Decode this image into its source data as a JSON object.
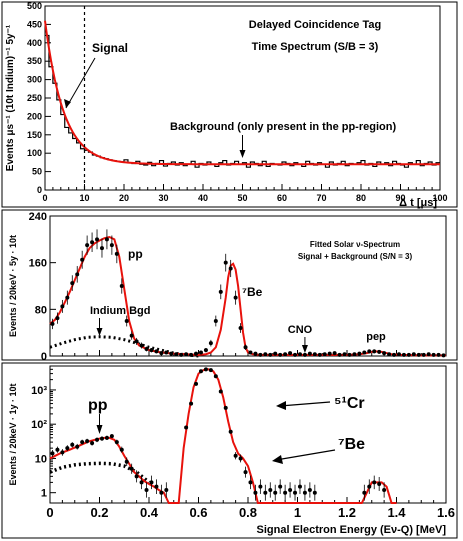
{
  "colors": {
    "fit": "#e8120c",
    "data": "#000000",
    "bgd": "#000000"
  },
  "chart_data": [
    {
      "type": "line",
      "panel": "time-spectrum",
      "annotations": [
        "Delayed Coincidence Tag",
        "Time Spectrum (S/B = 3)",
        "Signal",
        "Background (only present in the pp-region)"
      ],
      "xlabel": "Δ t [μs]",
      "ylabel": "Events μs⁻¹ (10t Indium)⁻¹ 5y⁻¹",
      "xlim": [
        0,
        100
      ],
      "ylim": [
        0,
        500
      ],
      "xticks": [
        0,
        10,
        20,
        30,
        40,
        50,
        60,
        70,
        80,
        90,
        100
      ],
      "yticks": [
        0,
        50,
        100,
        150,
        200,
        250,
        300,
        350,
        400,
        450,
        500
      ],
      "signal_cut": 10,
      "fit": {
        "A": 390,
        "tau": 4.7,
        "B": 70
      },
      "histogram": {
        "x": [
          0,
          1,
          2,
          3,
          4,
          5,
          6,
          7,
          8,
          9,
          10,
          11,
          12,
          13,
          14,
          15,
          16,
          17,
          18,
          19,
          20,
          21,
          22,
          23,
          24,
          25,
          26,
          27,
          28,
          29,
          30,
          31,
          32,
          33,
          34,
          35,
          36,
          37,
          38,
          39,
          40,
          41,
          42,
          43,
          44,
          45,
          46,
          47,
          48,
          49,
          50,
          51,
          52,
          53,
          54,
          55,
          56,
          57,
          58,
          59,
          60,
          61,
          62,
          63,
          64,
          65,
          66,
          67,
          68,
          69,
          70,
          71,
          72,
          73,
          74,
          75,
          76,
          77,
          78,
          79,
          80,
          81,
          82,
          83,
          84,
          85,
          86,
          87,
          88,
          89,
          90,
          91,
          92,
          93,
          94,
          95,
          96,
          97,
          98,
          99
        ],
        "y": [
          420,
          335,
          290,
          245,
          205,
          170,
          155,
          140,
          128,
          112,
          108,
          103,
          95,
          92,
          88,
          85,
          82,
          80,
          78,
          77,
          82,
          74,
          72,
          78,
          70,
          68,
          75,
          66,
          72,
          80,
          65,
          72,
          76,
          68,
          74,
          66,
          70,
          78,
          62,
          72,
          68,
          76,
          70,
          64,
          74,
          80,
          68,
          72,
          78,
          70,
          74,
          62,
          76,
          72,
          66,
          78,
          64,
          72,
          70,
          68,
          76,
          72,
          66,
          74,
          70,
          64,
          78,
          72,
          68,
          74,
          70,
          62,
          76,
          68,
          72,
          78,
          66,
          72,
          70,
          74,
          80,
          68,
          72,
          64,
          76,
          70,
          74,
          66,
          78,
          72,
          68,
          62,
          74,
          70,
          80,
          66,
          72,
          76,
          68,
          74
        ]
      }
    },
    {
      "type": "scatter",
      "panel": "energy-spectrum-linear",
      "annotations": [
        "Fitted Solar ν-Spectrum",
        "Signal + Background (S/N = 3)",
        "pp",
        "⁷Be",
        "Indium Bgd",
        "CNO",
        "pep"
      ],
      "ylabel": "Events / 20keV · 5y · 10t",
      "xlim": [
        0,
        1.6
      ],
      "ylim": [
        0,
        240
      ],
      "yticks": [
        0,
        80,
        160,
        240
      ],
      "points": {
        "x": [
          0.01,
          0.03,
          0.05,
          0.07,
          0.09,
          0.11,
          0.13,
          0.15,
          0.17,
          0.19,
          0.21,
          0.23,
          0.25,
          0.27,
          0.29,
          0.31,
          0.33,
          0.35,
          0.37,
          0.39,
          0.41,
          0.43,
          0.45,
          0.47,
          0.49,
          0.51,
          0.53,
          0.55,
          0.57,
          0.59,
          0.61,
          0.63,
          0.65,
          0.67,
          0.69,
          0.71,
          0.73,
          0.75,
          0.77,
          0.79,
          0.81,
          0.83,
          0.85,
          0.87,
          0.89,
          0.91,
          0.93,
          0.95,
          0.97,
          0.99,
          1.01,
          1.03,
          1.05,
          1.07,
          1.09,
          1.11,
          1.13,
          1.15,
          1.17,
          1.19,
          1.21,
          1.23,
          1.25,
          1.27,
          1.29,
          1.31,
          1.33,
          1.35,
          1.37,
          1.39,
          1.41,
          1.43,
          1.45,
          1.47,
          1.49,
          1.51,
          1.53,
          1.55,
          1.57,
          1.59
        ],
        "y": [
          55,
          65,
          85,
          100,
          125,
          140,
          165,
          190,
          195,
          200,
          185,
          200,
          190,
          175,
          120,
          60,
          35,
          25,
          18,
          12,
          10,
          8,
          5,
          6,
          4,
          3,
          2,
          3,
          2,
          4,
          6,
          10,
          22,
          60,
          110,
          160,
          150,
          100,
          48,
          15,
          6,
          4,
          2,
          3,
          2,
          4,
          2,
          3,
          5,
          2,
          3,
          2,
          4,
          3,
          2,
          3,
          4,
          5,
          2,
          3,
          2,
          3,
          4,
          6,
          8,
          8,
          7,
          5,
          3,
          2,
          3,
          2,
          2,
          3,
          2,
          2,
          3,
          2,
          2,
          1
        ]
      },
      "fit": {
        "x": [
          0.0,
          0.02,
          0.04,
          0.06,
          0.08,
          0.1,
          0.12,
          0.14,
          0.16,
          0.18,
          0.2,
          0.22,
          0.24,
          0.26,
          0.28,
          0.3,
          0.32,
          0.34,
          0.36,
          0.4,
          0.45,
          0.5,
          0.55,
          0.6,
          0.63,
          0.65,
          0.67,
          0.69,
          0.71,
          0.72,
          0.73,
          0.74,
          0.75,
          0.76,
          0.77,
          0.78,
          0.79,
          0.8,
          0.82,
          0.85,
          0.9,
          1.0,
          1.1,
          1.2,
          1.25,
          1.28,
          1.3,
          1.32,
          1.34,
          1.36,
          1.38,
          1.42,
          1.5,
          1.6
        ],
        "y": [
          55,
          62,
          75,
          92,
          110,
          130,
          150,
          170,
          185,
          193,
          198,
          202,
          204,
          200,
          170,
          115,
          60,
          30,
          18,
          10,
          6,
          4,
          3,
          2,
          3,
          6,
          15,
          45,
          100,
          135,
          155,
          158,
          148,
          120,
          80,
          40,
          15,
          6,
          3,
          2,
          2,
          2,
          2,
          2,
          3,
          5,
          7,
          8,
          7,
          5,
          3,
          2,
          1,
          1
        ]
      },
      "bgd": {
        "x": [
          0.0,
          0.05,
          0.1,
          0.15,
          0.2,
          0.25,
          0.3,
          0.35,
          0.4,
          0.45,
          0.5,
          0.55,
          0.6
        ],
        "y": [
          15,
          22,
          28,
          32,
          33,
          32,
          28,
          22,
          15,
          10,
          5,
          2,
          0
        ]
      },
      "arrows_at": {
        "pp": 0.2,
        "CNO": 1.03
      }
    },
    {
      "type": "scatter",
      "panel": "energy-spectrum-log",
      "annotations": [
        "pp",
        "⁵¹Cr",
        "⁷Be"
      ],
      "xlabel": "Signal Electron Energy (Eν-Q) [MeV]",
      "ylabel": "Events / 20keV · 1y · 10t",
      "xlim": [
        0,
        1.6
      ],
      "ylim": [
        0.5,
        5000
      ],
      "yscale": "log",
      "xticks": [
        0,
        0.2,
        0.4,
        0.6,
        0.8,
        1,
        1.2,
        1.4,
        1.6
      ],
      "yticks": [
        1,
        10,
        100,
        1000
      ],
      "points": {
        "x": [
          0.01,
          0.03,
          0.05,
          0.07,
          0.09,
          0.11,
          0.13,
          0.15,
          0.17,
          0.19,
          0.21,
          0.23,
          0.25,
          0.27,
          0.29,
          0.31,
          0.33,
          0.35,
          0.37,
          0.39,
          0.41,
          0.43,
          0.45,
          0.47,
          0.55,
          0.57,
          0.59,
          0.61,
          0.63,
          0.65,
          0.67,
          0.69,
          0.71,
          0.73,
          0.75,
          0.77,
          0.79,
          0.81,
          0.83,
          0.85,
          0.87,
          0.89,
          0.91,
          0.93,
          0.95,
          0.97,
          0.99,
          1.01,
          1.03,
          1.05,
          1.07,
          1.27,
          1.29,
          1.31,
          1.33,
          1.35
        ],
        "y": [
          14,
          18,
          15,
          20,
          25,
          22,
          30,
          32,
          28,
          35,
          38,
          40,
          45,
          30,
          18,
          8,
          5,
          3,
          2,
          1.2,
          2,
          1.5,
          1,
          1.2,
          80,
          400,
          1500,
          3500,
          4000,
          3800,
          2500,
          900,
          300,
          60,
          12,
          10,
          4,
          2,
          1,
          1.5,
          1,
          1.2,
          1,
          1.5,
          1,
          1.2,
          1,
          1.5,
          1,
          1.2,
          1,
          1,
          1.5,
          2,
          1.8,
          1.2
        ]
      },
      "fit": {
        "x": [
          0.0,
          0.04,
          0.08,
          0.12,
          0.16,
          0.2,
          0.22,
          0.24,
          0.26,
          0.28,
          0.3,
          0.32,
          0.34,
          0.36,
          0.38,
          0.4,
          0.42,
          0.44,
          0.46,
          0.48,
          0.5,
          0.52,
          0.54,
          0.56,
          0.58,
          0.6,
          0.62,
          0.64,
          0.66,
          0.68,
          0.7,
          0.72,
          0.74,
          0.76,
          0.78,
          0.8,
          0.82,
          0.84,
          1.26,
          1.28,
          1.3,
          1.32,
          1.34,
          1.36,
          1.38,
          1.4
        ],
        "y": [
          10,
          14,
          18,
          24,
          32,
          38,
          40,
          40,
          35,
          22,
          12,
          7,
          4,
          3,
          2.2,
          1.8,
          1.5,
          1.2,
          1,
          0.5,
          0.5,
          0.5,
          20,
          200,
          1200,
          3000,
          3800,
          4000,
          3500,
          2000,
          600,
          120,
          30,
          14,
          10,
          6,
          2,
          0.5,
          0.5,
          1,
          2,
          2,
          2,
          1.5,
          0.5,
          0.5
        ]
      },
      "bgd": {
        "x": [
          0.0,
          0.05,
          0.1,
          0.15,
          0.2,
          0.25,
          0.3,
          0.35,
          0.4
        ],
        "y": [
          4,
          5.5,
          6.5,
          7,
          7.2,
          7,
          6,
          4,
          2
        ]
      }
    }
  ]
}
